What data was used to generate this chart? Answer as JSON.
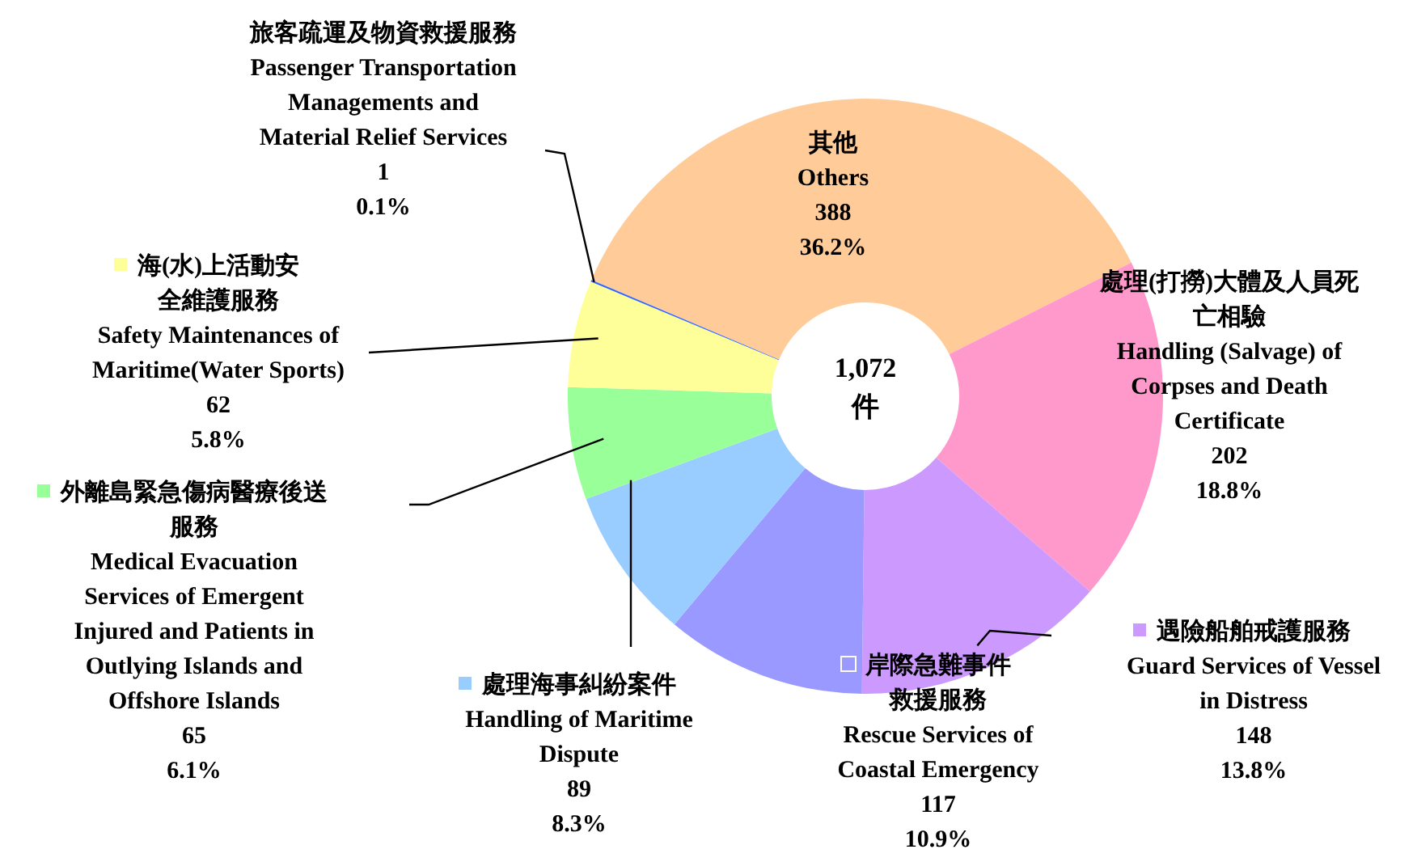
{
  "chart_data": {
    "type": "donut",
    "categories": [
      "其他\nOthers",
      "處理(打撈)大體及人員死亡相驗\nHandling (Salvage) of\nCorpses and Death\nCertificate",
      "遇險船舶戒護服務\nGuard Services of Vessel\nin Distress",
      "岸際急難事件救援服務\nRescue Services of\nCoastal Emergency",
      "處理海事糾紛案件\nHandling of Maritime\nDispute",
      "外離島緊急傷病醫療後送服務\nMedical Evacuation\nServices of Emergent\nInjured and Patients in\nOutlying Islands and\nOffshore Islands",
      "海(水)上活動安全維護服務\nSafety Maintenances of\nMaritime(Water Sports)",
      "旅客疏運及物資救援服務\nPassenger Transportation\nManagements and\nMaterial Relief Services"
    ],
    "values": [
      36.2,
      18.8,
      13.8,
      10.9,
      8.3,
      6.1,
      5.8,
      0.1
    ],
    "value_labels": [
      "388\n36.2%",
      "202\n18.8%",
      "148\n13.8%",
      "117\n10.9%",
      "89\n8.3%",
      "65\n6.1%",
      "62\n5.8%",
      "1\n0.1%"
    ],
    "colors": [
      "#ffcc99",
      "#ff99cc",
      "#cc99ff",
      "#9999ff",
      "#99ccff",
      "#99ff99",
      "#ffff99",
      "#3366ff"
    ],
    "legend": "left",
    "annotations": [
      "1,072\n件"
    ]
  }
}
